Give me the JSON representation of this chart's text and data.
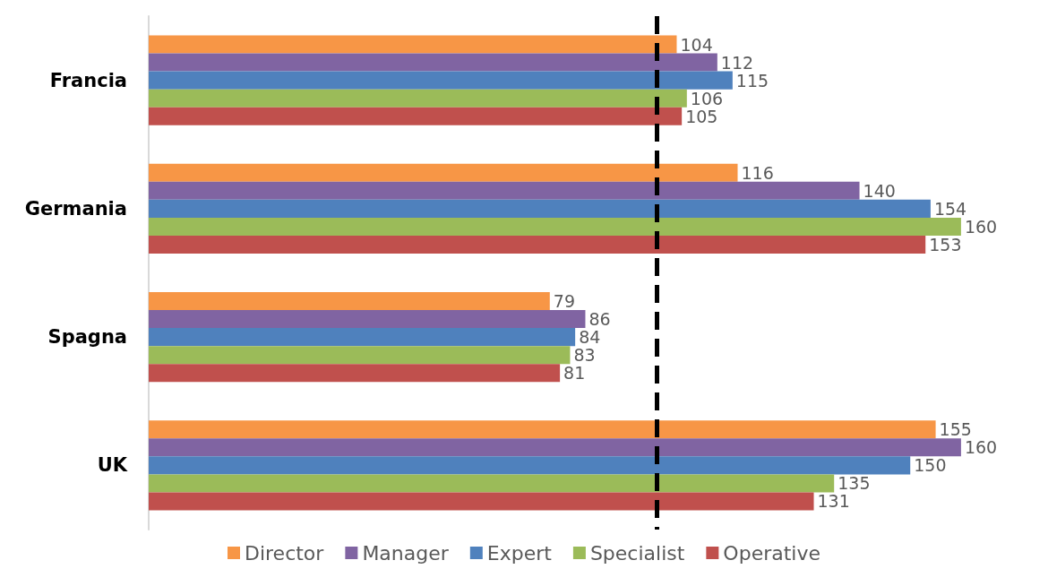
{
  "chart_data": {
    "type": "bar",
    "orientation": "horizontal",
    "categories": [
      "Francia",
      "Germania",
      "Spagna",
      "UK"
    ],
    "series": [
      {
        "name": "Director",
        "color": "#f79646",
        "values": [
          104,
          116,
          79,
          155
        ]
      },
      {
        "name": "Manager",
        "color": "#8064a2",
        "values": [
          112,
          140,
          86,
          160
        ]
      },
      {
        "name": "Expert",
        "color": "#4f81bd",
        "values": [
          115,
          154,
          84,
          150
        ]
      },
      {
        "name": "Specialist",
        "color": "#9bbb59",
        "values": [
          106,
          160,
          83,
          135
        ]
      },
      {
        "name": "Operative",
        "color": "#c0504d",
        "values": [
          105,
          153,
          81,
          131
        ]
      }
    ],
    "data_labels": true,
    "legend": "bottom",
    "grid": false,
    "ref_lines": [
      {
        "axis": "x",
        "value": 100,
        "color": "#000000",
        "line_style": "dashed"
      }
    ]
  }
}
